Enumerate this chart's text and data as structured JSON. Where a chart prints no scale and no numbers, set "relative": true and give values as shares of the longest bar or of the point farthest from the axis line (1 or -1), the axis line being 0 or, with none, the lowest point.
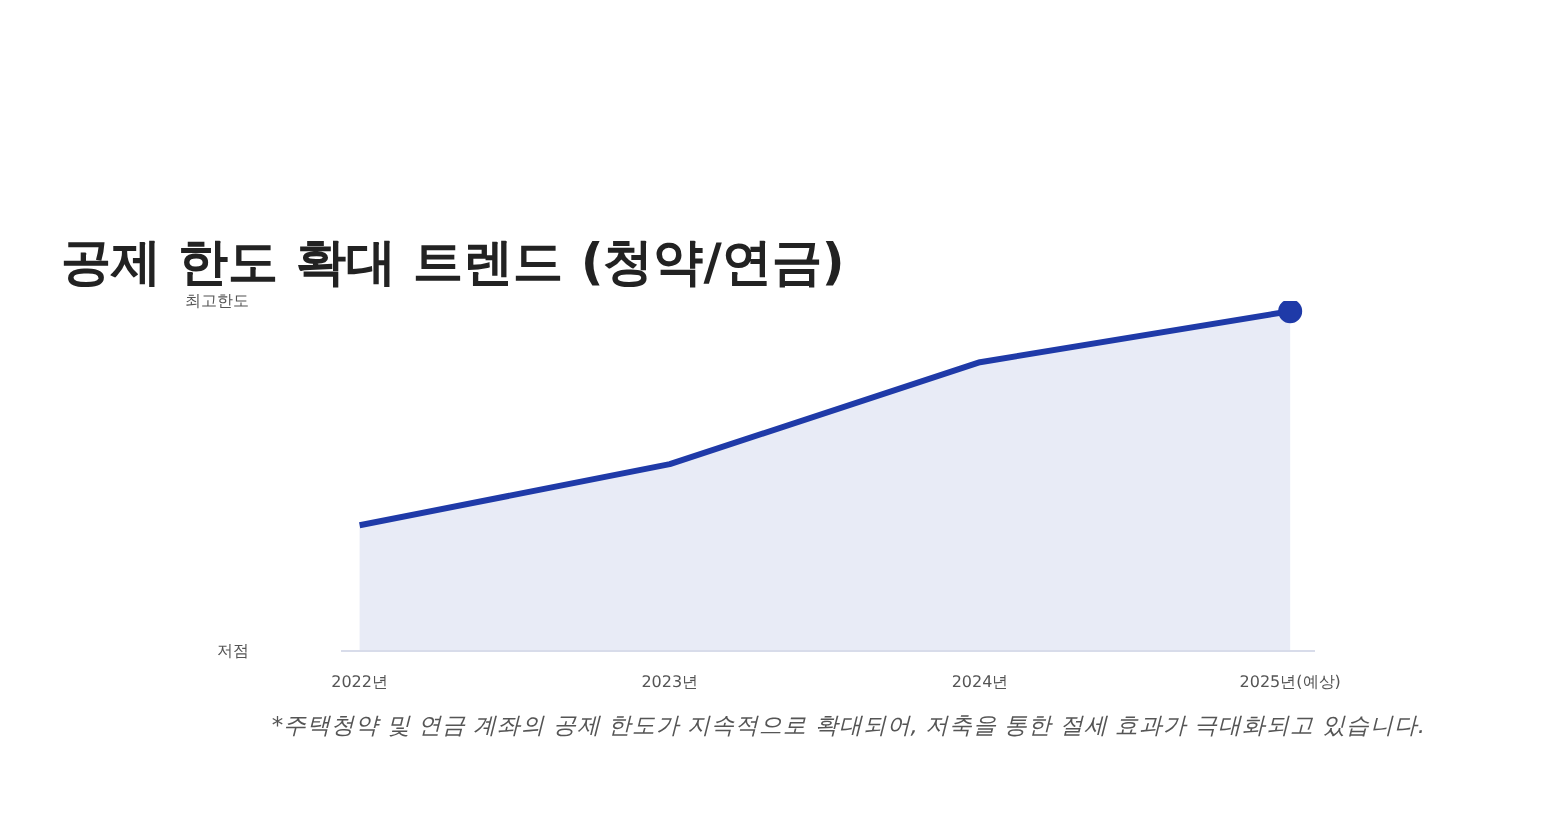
{
  "chart_data": {
    "type": "area",
    "title": "공제 한도 확대 트렌드 (청약/연금)",
    "categories": [
      "2022년",
      "2023년",
      "2024년",
      "2025년(예상)"
    ],
    "relative": true,
    "series": [
      {
        "color": "#1f3aa8",
        "values": [
          0.37,
          0.55,
          0.85,
          1
        ]
      },
      {
        "type": "scatter",
        "color": "#1f3aa8",
        "marker": "circle",
        "values": [
          null,
          null,
          null,
          1
        ]
      }
    ],
    "annotations": [
      "최고한도",
      "저점",
      "*주택청약 및 연금 계좌의 공제 한도가 지속적으로 확대되어, 저축을 통한 절세 효과가 극대화되고 있습니다."
    ]
  }
}
